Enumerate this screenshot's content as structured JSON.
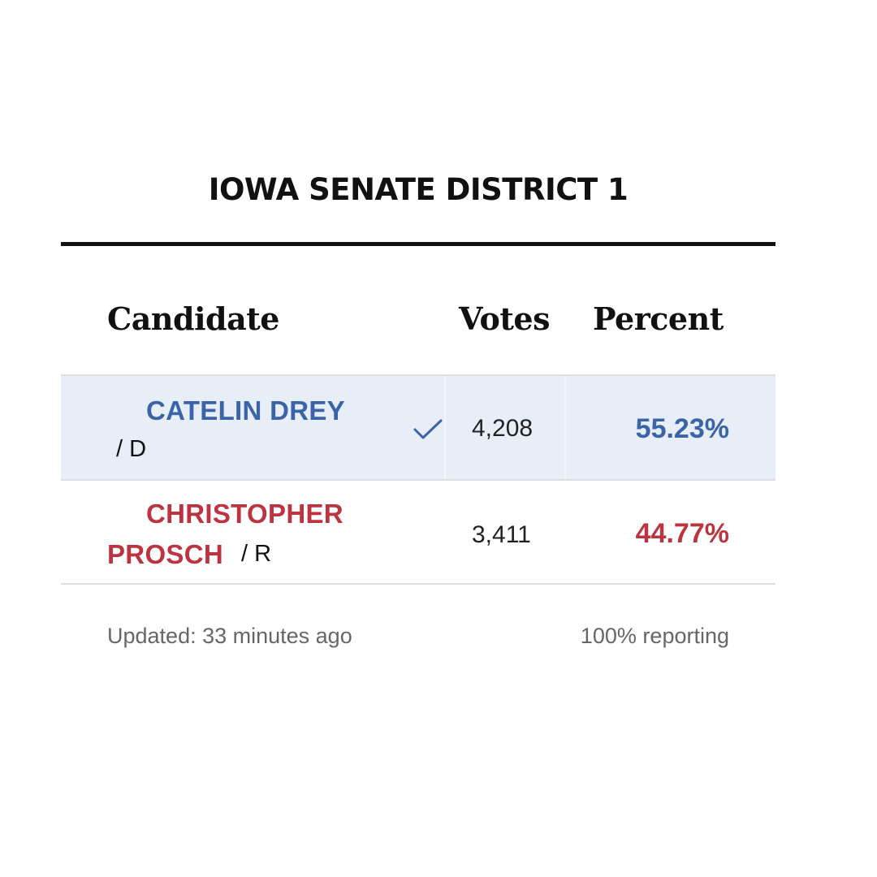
{
  "race": {
    "title": "IOWA SENATE DISTRICT 1"
  },
  "table": {
    "headers": {
      "candidate": "Candidate",
      "votes": "Votes",
      "percent": "Percent"
    },
    "rows": [
      {
        "name_line1": "CATELIN DREY",
        "name_line2": "",
        "party": "/ D",
        "votes": "4,208",
        "percent": "55.23%",
        "winner": true,
        "color": "#3b64a8"
      },
      {
        "name_line1": "CHRISTOPHER",
        "name_line2": "PROSCH",
        "party": "/ R",
        "votes": "3,411",
        "percent": "44.77%",
        "winner": false,
        "color": "#bb3440"
      }
    ]
  },
  "footer": {
    "updated": "Updated: 33 minutes ago",
    "reporting": "100% reporting"
  },
  "icons": {
    "winner": "checkmark-icon"
  },
  "colors": {
    "democrat": "#3b64a8",
    "republican": "#bb3440",
    "winner_row_bg": "#e8eef7"
  }
}
